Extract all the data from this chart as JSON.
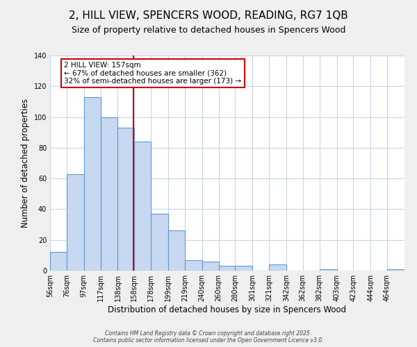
{
  "title": "2, HILL VIEW, SPENCERS WOOD, READING, RG7 1QB",
  "subtitle": "Size of property relative to detached houses in Spencers Wood",
  "xlabel": "Distribution of detached houses by size in Spencers Wood",
  "ylabel": "Number of detached properties",
  "bar_labels": [
    "56sqm",
    "76sqm",
    "97sqm",
    "117sqm",
    "138sqm",
    "158sqm",
    "178sqm",
    "199sqm",
    "219sqm",
    "240sqm",
    "260sqm",
    "280sqm",
    "301sqm",
    "321sqm",
    "342sqm",
    "362sqm",
    "382sqm",
    "403sqm",
    "423sqm",
    "444sqm",
    "464sqm"
  ],
  "bar_values": [
    12,
    63,
    113,
    100,
    93,
    84,
    37,
    26,
    7,
    6,
    3,
    3,
    0,
    4,
    0,
    0,
    1,
    0,
    0,
    0,
    1
  ],
  "bar_edges": [
    56,
    76,
    97,
    117,
    138,
    158,
    178,
    199,
    219,
    240,
    260,
    280,
    301,
    321,
    342,
    362,
    382,
    403,
    423,
    444,
    464,
    485
  ],
  "bar_color": "#c8d8f0",
  "bar_edge_color": "#5b9bd5",
  "property_line_x": 157,
  "property_line_color": "#cc0000",
  "annotation_text": "2 HILL VIEW: 157sqm\n← 67% of detached houses are smaller (362)\n32% of semi-detached houses are larger (173) →",
  "annotation_box_color": "#ffffff",
  "annotation_box_edge": "#cc0000",
  "ylim": [
    0,
    140
  ],
  "yticks": [
    0,
    20,
    40,
    60,
    80,
    100,
    120,
    140
  ],
  "xlim_left": 56,
  "xlim_right": 485,
  "background_color": "#efefef",
  "plot_bg_color": "#ffffff",
  "grid_color": "#c8d4e8",
  "footer_line1": "Contains HM Land Registry data © Crown copyright and database right 2025.",
  "footer_line2": "Contains public sector information licensed under the Open Government Licence v3.0.",
  "title_fontsize": 11,
  "subtitle_fontsize": 9,
  "axis_label_fontsize": 8.5,
  "tick_fontsize": 7,
  "annotation_fontsize": 7.5
}
